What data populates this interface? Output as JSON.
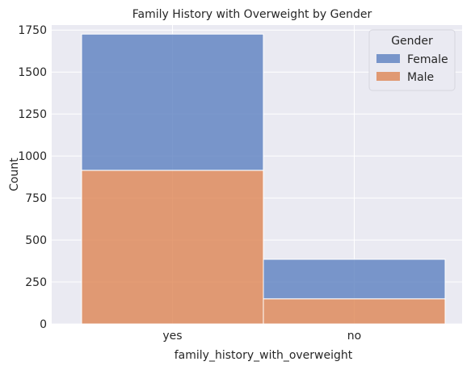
{
  "chart_data": {
    "type": "bar",
    "stacked": true,
    "title": "Family History with Overweight by Gender",
    "xlabel": "family_history_with_overweight",
    "ylabel": "Count",
    "categories": [
      "yes",
      "no"
    ],
    "series": [
      {
        "name": "Male",
        "values": [
          915,
          150
        ]
      },
      {
        "name": "Female",
        "values": [
          811,
          235
        ]
      }
    ],
    "ylim": [
      0,
      1780
    ],
    "yticks": [
      0,
      250,
      500,
      750,
      1000,
      1250,
      1500,
      1750
    ],
    "grid": true,
    "legend": {
      "title": "Gender",
      "placement": "top-right",
      "order": [
        "Female",
        "Male"
      ]
    },
    "colors": {
      "Female": "#5b7fbf",
      "Male": "#dd8452",
      "background": "#eaeaf2",
      "grid": "#ffffff"
    }
  }
}
